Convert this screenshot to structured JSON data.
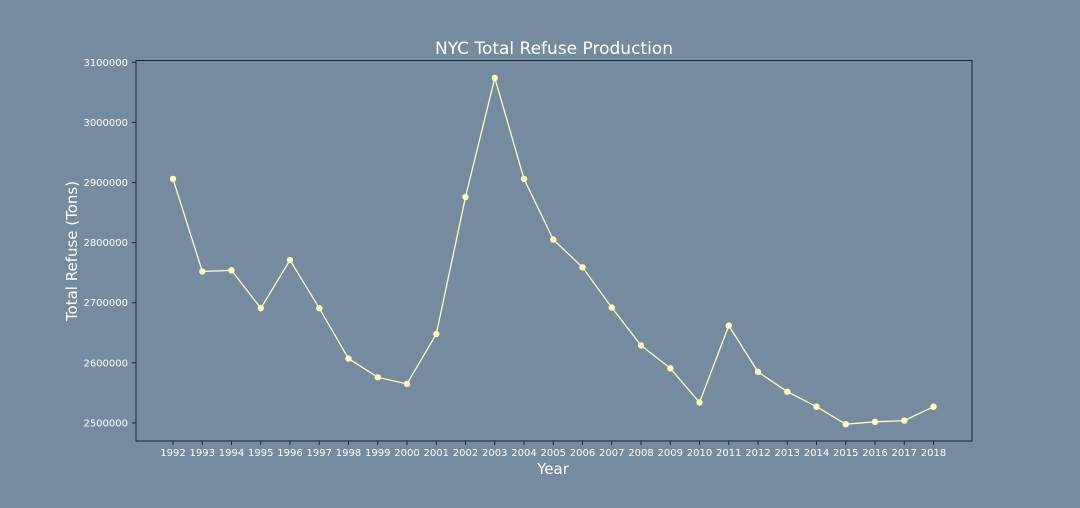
{
  "chart_data": {
    "type": "line",
    "title": "NYC Total Refuse Production",
    "xlabel": "Year",
    "ylabel": "Total Refuse (Tons)",
    "x": [
      "1992",
      "1993",
      "1994",
      "1995",
      "1996",
      "1997",
      "1998",
      "1999",
      "2000",
      "2001",
      "2002",
      "2003",
      "2004",
      "2005",
      "2006",
      "2007",
      "2008",
      "2009",
      "2010",
      "2011",
      "2012",
      "2013",
      "2014",
      "2015",
      "2016",
      "2017",
      "2018"
    ],
    "values": [
      2906000,
      2752000,
      2754000,
      2691000,
      2771000,
      2691000,
      2607000,
      2576000,
      2565000,
      2648000,
      2876000,
      3074000,
      2906000,
      2805000,
      2759000,
      2692000,
      2629000,
      2591000,
      2534000,
      2662000,
      2585000,
      2552000,
      2527000,
      2498000,
      2502000,
      2504000,
      2527000
    ],
    "yticks": [
      "2500000",
      "2600000",
      "2700000",
      "2800000",
      "2900000",
      "3000000",
      "3100000"
    ],
    "ylim": [
      2470000,
      3103000
    ],
    "grid": false,
    "legend": false,
    "colors": {
      "background": "#748ba0",
      "line": "#fffdb8",
      "marker": "#fffdb8",
      "axes": "#1c2530",
      "text": "#ffffff"
    }
  }
}
